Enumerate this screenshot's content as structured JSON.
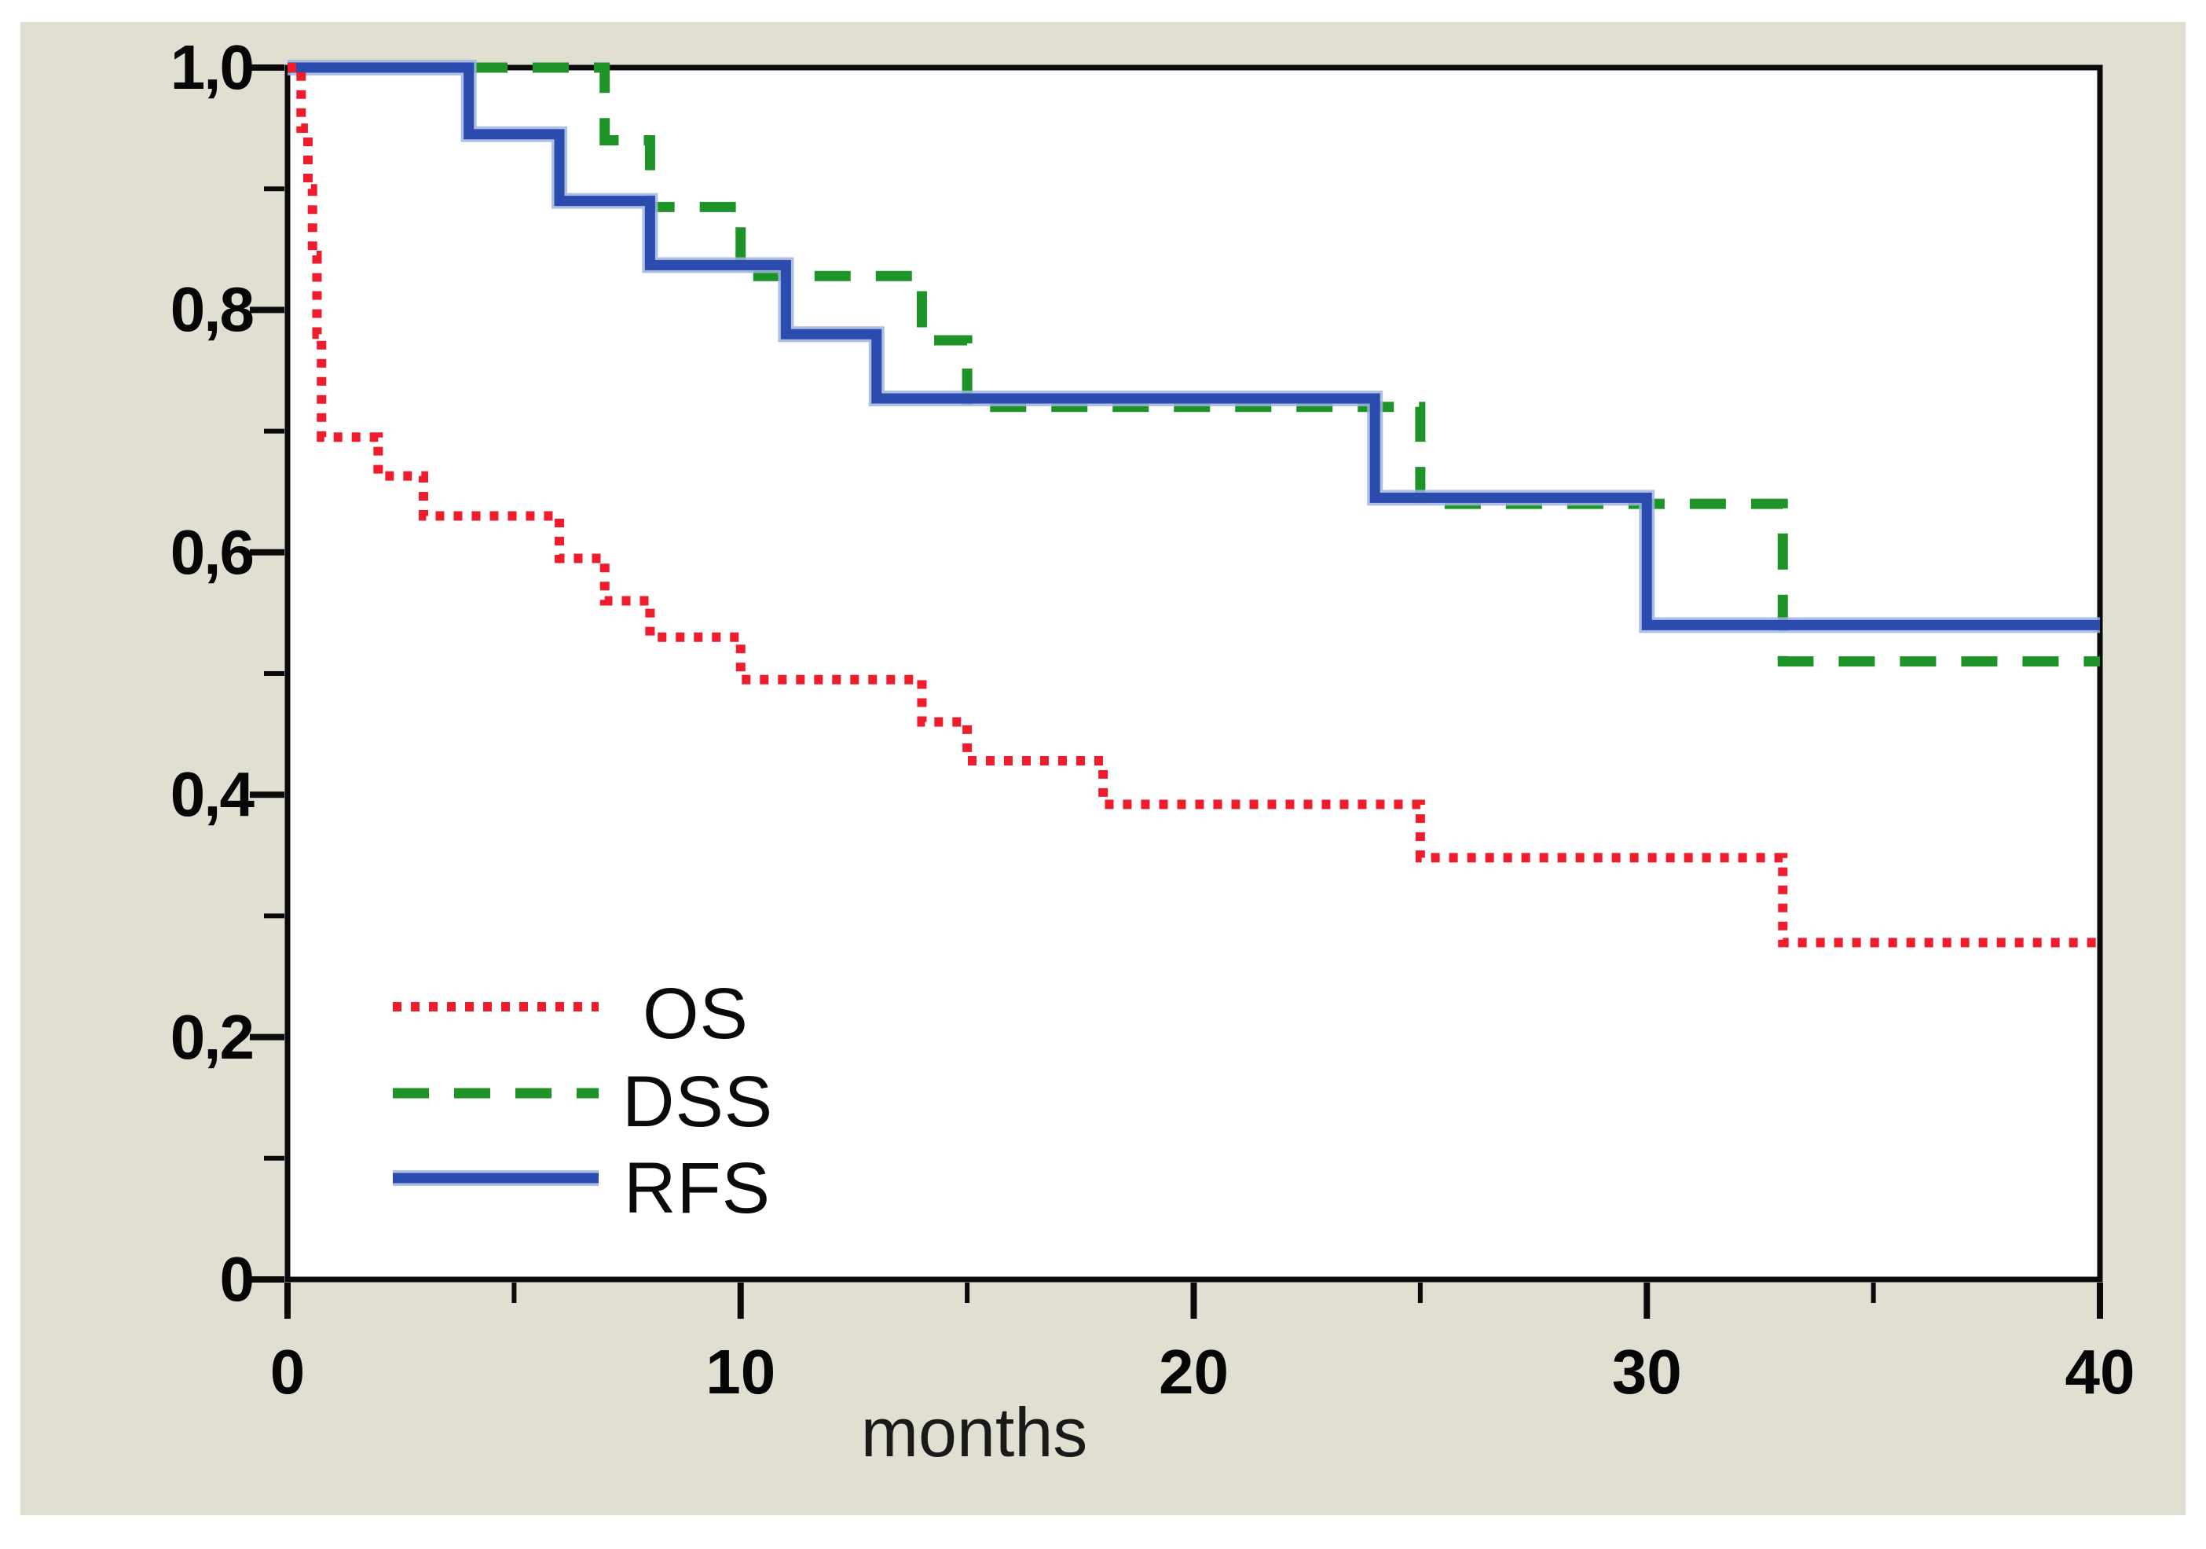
{
  "figure": {
    "background_color": "#ffffff",
    "panel_color": "#e0dfd2",
    "plot_background_color": "#ffffff",
    "axis_color": "#0a0a0a"
  },
  "chart_data": {
    "type": "line",
    "subtype": "kaplan-meier-step-survival",
    "title": "",
    "xlabel": "months",
    "ylabel": "",
    "xlim": [
      0,
      40
    ],
    "ylim": [
      0,
      1.0
    ],
    "grid": false,
    "legend_position": "inside-lower-left",
    "x_ticks_major": [
      {
        "v": 0,
        "label": "0"
      },
      {
        "v": 10,
        "label": "10"
      },
      {
        "v": 20,
        "label": "20"
      },
      {
        "v": 30,
        "label": "30"
      },
      {
        "v": 40,
        "label": "40"
      }
    ],
    "x_ticks_minor": [
      5,
      15,
      25,
      35
    ],
    "y_ticks_major": [
      {
        "v": 1.0,
        "label": "1,0"
      },
      {
        "v": 0.8,
        "label": "0,8"
      },
      {
        "v": 0.6,
        "label": "0,6"
      },
      {
        "v": 0.4,
        "label": "0,4"
      },
      {
        "v": 0.2,
        "label": "0,2"
      },
      {
        "v": 0.0,
        "label": "0"
      }
    ],
    "y_ticks_minor": [
      0.9,
      0.7,
      0.5,
      0.3,
      0.1
    ],
    "series": [
      {
        "name": "OS",
        "color": "#ee1c2c",
        "line_style": "dotted",
        "start": [
          0,
          1.0
        ],
        "end_x": 40,
        "steps": [
          [
            0.3,
            0.95
          ],
          [
            0.45,
            0.9
          ],
          [
            0.55,
            0.845
          ],
          [
            0.65,
            0.78
          ],
          [
            0.75,
            0.695
          ],
          [
            2,
            0.663
          ],
          [
            3,
            0.63
          ],
          [
            6,
            0.595
          ],
          [
            7,
            0.56
          ],
          [
            8,
            0.53
          ],
          [
            10,
            0.495
          ],
          [
            14,
            0.46
          ],
          [
            15,
            0.428
          ],
          [
            18,
            0.392
          ],
          [
            25,
            0.348
          ],
          [
            33,
            0.278
          ]
        ]
      },
      {
        "name": "DSS",
        "color": "#1e9428",
        "line_style": "dashed",
        "start": [
          0,
          1.0
        ],
        "end_x": 40,
        "steps": [
          [
            7,
            0.94
          ],
          [
            8,
            0.885
          ],
          [
            10,
            0.828
          ],
          [
            14,
            0.775
          ],
          [
            15,
            0.72
          ],
          [
            25,
            0.64
          ],
          [
            33,
            0.51
          ]
        ]
      },
      {
        "name": "RFS",
        "color": "#2b4bae",
        "halo_color": "#9fb4de",
        "line_style": "solid",
        "start": [
          0,
          1.0
        ],
        "end_x": 40,
        "steps": [
          [
            4,
            0.945
          ],
          [
            6,
            0.89
          ],
          [
            8,
            0.837
          ],
          [
            11,
            0.78
          ],
          [
            13,
            0.727
          ],
          [
            24,
            0.645
          ],
          [
            30,
            0.54
          ]
        ]
      }
    ]
  },
  "legend": {
    "entries": [
      {
        "label": "OS"
      },
      {
        "label": "DSS"
      },
      {
        "label": "RFS"
      }
    ]
  }
}
